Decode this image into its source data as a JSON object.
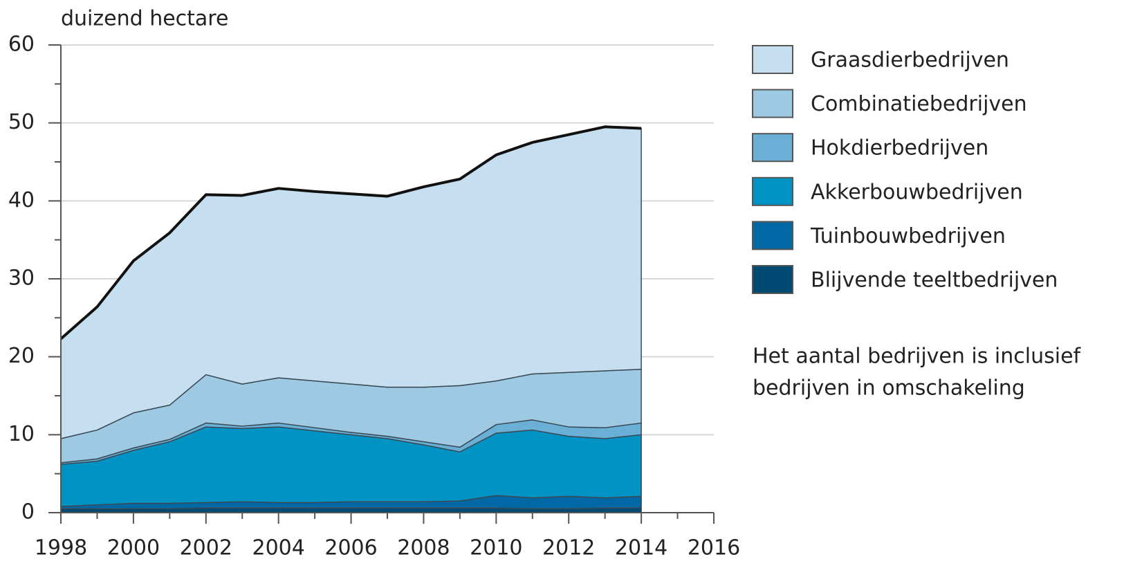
{
  "chart_data": {
    "type": "stacked_area",
    "y_label": "duizend hectare",
    "x": [
      1998,
      1999,
      2000,
      2001,
      2002,
      2003,
      2004,
      2005,
      2006,
      2007,
      2008,
      2009,
      2010,
      2011,
      2012,
      2013,
      2014
    ],
    "xlim": [
      1998,
      2016
    ],
    "xticks": [
      1998,
      2000,
      2002,
      2004,
      2006,
      2008,
      2010,
      2012,
      2014,
      2016
    ],
    "ylim": [
      0,
      60
    ],
    "yticks": [
      0,
      10,
      20,
      30,
      40,
      50,
      60
    ],
    "grid": true,
    "legend": "right",
    "series": [
      {
        "name": "Graasdierbedrijven",
        "color": "#c6dff0",
        "values": [
          12.8,
          15.8,
          19.5,
          22.1,
          23.1,
          24.2,
          24.3,
          24.3,
          24.4,
          24.5,
          25.7,
          26.5,
          29.0,
          29.7,
          30.5,
          31.3,
          30.9
        ]
      },
      {
        "name": "Combinatiebedrijven",
        "color": "#9dc9e3",
        "values": [
          3.1,
          3.7,
          4.5,
          4.4,
          6.2,
          5.4,
          5.8,
          6.0,
          6.2,
          6.3,
          7.0,
          7.9,
          5.6,
          5.9,
          7.0,
          7.3,
          6.9
        ]
      },
      {
        "name": "Hokdierbedrijven",
        "color": "#6aafd5",
        "values": [
          0.2,
          0.3,
          0.3,
          0.3,
          0.5,
          0.3,
          0.5,
          0.4,
          0.3,
          0.3,
          0.4,
          0.6,
          1.1,
          1.3,
          1.2,
          1.4,
          1.5
        ]
      },
      {
        "name": "Akkerbouwbedrijven",
        "color": "#0093c4",
        "values": [
          5.4,
          5.6,
          6.8,
          7.9,
          9.7,
          9.4,
          9.7,
          9.2,
          8.6,
          8.1,
          7.3,
          6.3,
          8.0,
          8.7,
          7.7,
          7.6,
          7.9
        ]
      },
      {
        "name": "Tuinbouwbedrijven",
        "color": "#0068a5",
        "values": [
          0.3,
          0.5,
          0.7,
          0.7,
          0.7,
          0.8,
          0.7,
          0.7,
          0.8,
          0.8,
          0.8,
          0.9,
          1.6,
          1.4,
          1.6,
          1.3,
          1.5
        ]
      },
      {
        "name": "Blijvende teeltbedrijven",
        "color": "#004a73",
        "values": [
          0.5,
          0.5,
          0.5,
          0.5,
          0.6,
          0.6,
          0.6,
          0.6,
          0.6,
          0.6,
          0.6,
          0.6,
          0.6,
          0.5,
          0.5,
          0.6,
          0.6
        ]
      }
    ],
    "note": [
      "Het aantal bedrijven is inclusief",
      "bedrijven in omschakeling"
    ]
  }
}
